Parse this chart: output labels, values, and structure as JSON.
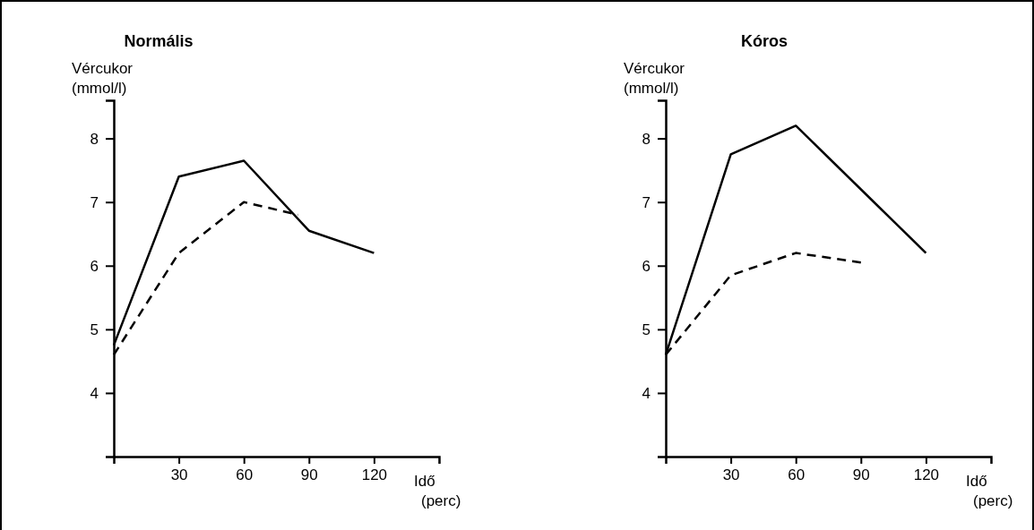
{
  "chart_data": [
    {
      "type": "line",
      "title": "Normális",
      "ylabel": "Vércukor\n(mmol/l)",
      "xlabel": "Idő\n(perc)",
      "xlim": [
        0,
        150
      ],
      "xticks": [
        30,
        60,
        90,
        120
      ],
      "ylim": [
        3,
        8.6
      ],
      "yticks": [
        4,
        5,
        6,
        7,
        8
      ],
      "grid": false,
      "marker": "none",
      "series": [
        {
          "color": "#000000",
          "line_style": "solid",
          "x": [
            0,
            30,
            60,
            90,
            120
          ],
          "values": [
            4.75,
            7.4,
            7.65,
            6.55,
            6.2
          ]
        },
        {
          "color": "#000000",
          "line_style": "dashed",
          "x": [
            0,
            30,
            60,
            85
          ],
          "values": [
            4.6,
            6.2,
            7.0,
            6.8
          ]
        }
      ]
    },
    {
      "type": "line",
      "title": "Kóros",
      "ylabel": "Vércukor\n(mmol/l)",
      "xlabel": "Idő\n(perc)",
      "xlim": [
        0,
        150
      ],
      "xticks": [
        30,
        60,
        90,
        120
      ],
      "ylim": [
        3,
        8.6
      ],
      "yticks": [
        4,
        5,
        6,
        7,
        8
      ],
      "grid": false,
      "marker": "none",
      "series": [
        {
          "color": "#000000",
          "line_style": "solid",
          "x": [
            0,
            30,
            60,
            90,
            120
          ],
          "values": [
            4.6,
            7.75,
            8.2,
            7.2,
            6.2
          ]
        },
        {
          "color": "#000000",
          "line_style": "dashed",
          "x": [
            0,
            30,
            60,
            90
          ],
          "values": [
            4.6,
            5.85,
            6.2,
            6.05
          ]
        }
      ]
    }
  ]
}
